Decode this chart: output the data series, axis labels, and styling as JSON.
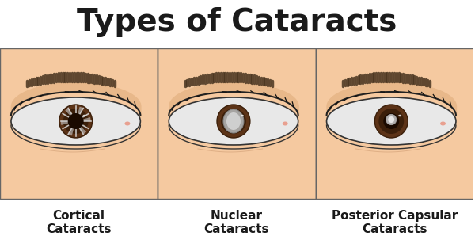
{
  "title": "Types of Cataracts",
  "title_fontsize": 28,
  "title_fontweight": "bold",
  "background_color": "#ffffff",
  "panel_bg": "#f5c9a0",
  "panel_border": "#555555",
  "labels": [
    "Cortical\nCataracts",
    "Nuclear\nCataracts",
    "Posterior Capsular\nCataracts"
  ],
  "label_fontsize": 11,
  "label_fontweight": "bold",
  "skin_color": "#f5c9a0",
  "sclera_color": "#e8e8e8",
  "iris_color": "#5c3317",
  "iris_dark": "#3b1f0a",
  "pupil_color": "#1a0a00",
  "eyebrow_color": "#4a3520",
  "eyelid_color": "#e8b88a",
  "eyelid_dark": "#c9956b",
  "cataract1_color": "#cccccc",
  "cataract2_color": "#aaaaaa",
  "cataract3_color": "#dddddd",
  "divider_color": "#666666"
}
